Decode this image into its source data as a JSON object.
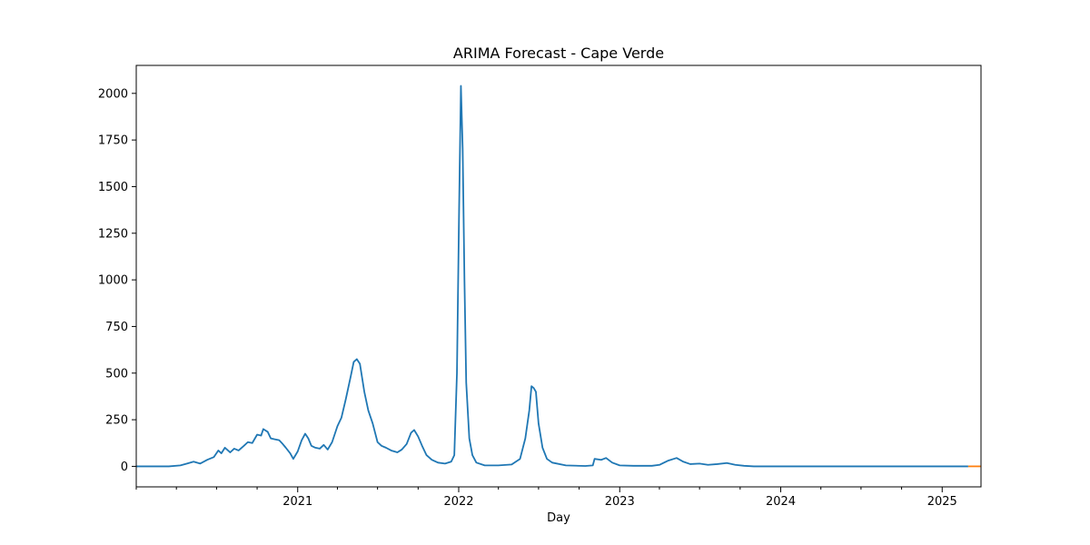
{
  "chart_data": {
    "type": "line",
    "title": "ARIMA Forecast - Cape Verde",
    "xlabel": "Day",
    "ylabel": "",
    "x_type": "date",
    "xlim": [
      "2020-01-01",
      "2025-03-30"
    ],
    "ylim": [
      -110,
      2150
    ],
    "x_ticks": [
      {
        "date": "2021-01-01",
        "label": "2021"
      },
      {
        "date": "2022-01-01",
        "label": "2022"
      },
      {
        "date": "2023-01-01",
        "label": "2023"
      },
      {
        "date": "2024-01-01",
        "label": "2024"
      },
      {
        "date": "2025-01-01",
        "label": "2025"
      }
    ],
    "y_ticks": [
      0,
      250,
      500,
      750,
      1000,
      1250,
      1500,
      1750,
      2000
    ],
    "grid": false,
    "series": [
      {
        "color": "#1f77b4",
        "points": [
          [
            "2020-01-01",
            0
          ],
          [
            "2020-03-15",
            0
          ],
          [
            "2020-04-10",
            5
          ],
          [
            "2020-04-25",
            15
          ],
          [
            "2020-05-10",
            25
          ],
          [
            "2020-05-25",
            15
          ],
          [
            "2020-06-10",
            35
          ],
          [
            "2020-06-25",
            50
          ],
          [
            "2020-07-05",
            85
          ],
          [
            "2020-07-12",
            70
          ],
          [
            "2020-07-20",
            100
          ],
          [
            "2020-08-01",
            75
          ],
          [
            "2020-08-10",
            95
          ],
          [
            "2020-08-20",
            85
          ],
          [
            "2020-09-01",
            110
          ],
          [
            "2020-09-10",
            130
          ],
          [
            "2020-09-20",
            125
          ],
          [
            "2020-10-01",
            170
          ],
          [
            "2020-10-10",
            165
          ],
          [
            "2020-10-15",
            200
          ],
          [
            "2020-10-25",
            185
          ],
          [
            "2020-11-01",
            150
          ],
          [
            "2020-11-10",
            145
          ],
          [
            "2020-11-20",
            140
          ],
          [
            "2020-11-28",
            120
          ],
          [
            "2020-12-05",
            100
          ],
          [
            "2020-12-15",
            70
          ],
          [
            "2020-12-22",
            40
          ],
          [
            "2021-01-01",
            80
          ],
          [
            "2021-01-10",
            140
          ],
          [
            "2021-01-18",
            175
          ],
          [
            "2021-01-25",
            150
          ],
          [
            "2021-02-01",
            110
          ],
          [
            "2021-02-10",
            100
          ],
          [
            "2021-02-20",
            95
          ],
          [
            "2021-03-01",
            115
          ],
          [
            "2021-03-10",
            90
          ],
          [
            "2021-03-20",
            130
          ],
          [
            "2021-04-01",
            215
          ],
          [
            "2021-04-10",
            260
          ],
          [
            "2021-04-20",
            360
          ],
          [
            "2021-05-01",
            480
          ],
          [
            "2021-05-08",
            560
          ],
          [
            "2021-05-15",
            575
          ],
          [
            "2021-05-22",
            550
          ],
          [
            "2021-06-01",
            400
          ],
          [
            "2021-06-10",
            300
          ],
          [
            "2021-06-20",
            230
          ],
          [
            "2021-07-01",
            130
          ],
          [
            "2021-07-10",
            110
          ],
          [
            "2021-07-20",
            100
          ],
          [
            "2021-08-01",
            85
          ],
          [
            "2021-08-15",
            75
          ],
          [
            "2021-08-25",
            90
          ],
          [
            "2021-09-05",
            120
          ],
          [
            "2021-09-15",
            180
          ],
          [
            "2021-09-22",
            195
          ],
          [
            "2021-10-01",
            160
          ],
          [
            "2021-10-10",
            110
          ],
          [
            "2021-10-20",
            60
          ],
          [
            "2021-11-01",
            35
          ],
          [
            "2021-11-15",
            20
          ],
          [
            "2021-12-01",
            15
          ],
          [
            "2021-12-15",
            25
          ],
          [
            "2021-12-22",
            60
          ],
          [
            "2021-12-28",
            500
          ],
          [
            "2022-01-02",
            1400
          ],
          [
            "2022-01-06",
            2040
          ],
          [
            "2022-01-10",
            1700
          ],
          [
            "2022-01-14",
            1000
          ],
          [
            "2022-01-18",
            450
          ],
          [
            "2022-01-25",
            150
          ],
          [
            "2022-02-01",
            60
          ],
          [
            "2022-02-10",
            20
          ],
          [
            "2022-03-01",
            5
          ],
          [
            "2022-04-01",
            5
          ],
          [
            "2022-05-01",
            10
          ],
          [
            "2022-05-20",
            40
          ],
          [
            "2022-06-01",
            150
          ],
          [
            "2022-06-10",
            300
          ],
          [
            "2022-06-15",
            430
          ],
          [
            "2022-06-20",
            420
          ],
          [
            "2022-06-25",
            400
          ],
          [
            "2022-07-01",
            230
          ],
          [
            "2022-07-10",
            100
          ],
          [
            "2022-07-20",
            40
          ],
          [
            "2022-08-01",
            20
          ],
          [
            "2022-09-01",
            5
          ],
          [
            "2022-10-15",
            2
          ],
          [
            "2022-11-01",
            5
          ],
          [
            "2022-11-05",
            40
          ],
          [
            "2022-11-20",
            35
          ],
          [
            "2022-12-01",
            45
          ],
          [
            "2022-12-15",
            20
          ],
          [
            "2023-01-01",
            5
          ],
          [
            "2023-02-01",
            3
          ],
          [
            "2023-03-15",
            3
          ],
          [
            "2023-04-01",
            8
          ],
          [
            "2023-04-20",
            30
          ],
          [
            "2023-05-10",
            45
          ],
          [
            "2023-05-25",
            25
          ],
          [
            "2023-06-10",
            12
          ],
          [
            "2023-07-01",
            15
          ],
          [
            "2023-07-20",
            8
          ],
          [
            "2023-08-10",
            12
          ],
          [
            "2023-09-01",
            18
          ],
          [
            "2023-09-20",
            8
          ],
          [
            "2023-10-10",
            3
          ],
          [
            "2023-11-01",
            0
          ],
          [
            "2025-03-01",
            0
          ]
        ]
      },
      {
        "color": "#ff7f0e",
        "points": [
          [
            "2025-03-01",
            0
          ],
          [
            "2025-03-30",
            0
          ]
        ]
      }
    ]
  }
}
